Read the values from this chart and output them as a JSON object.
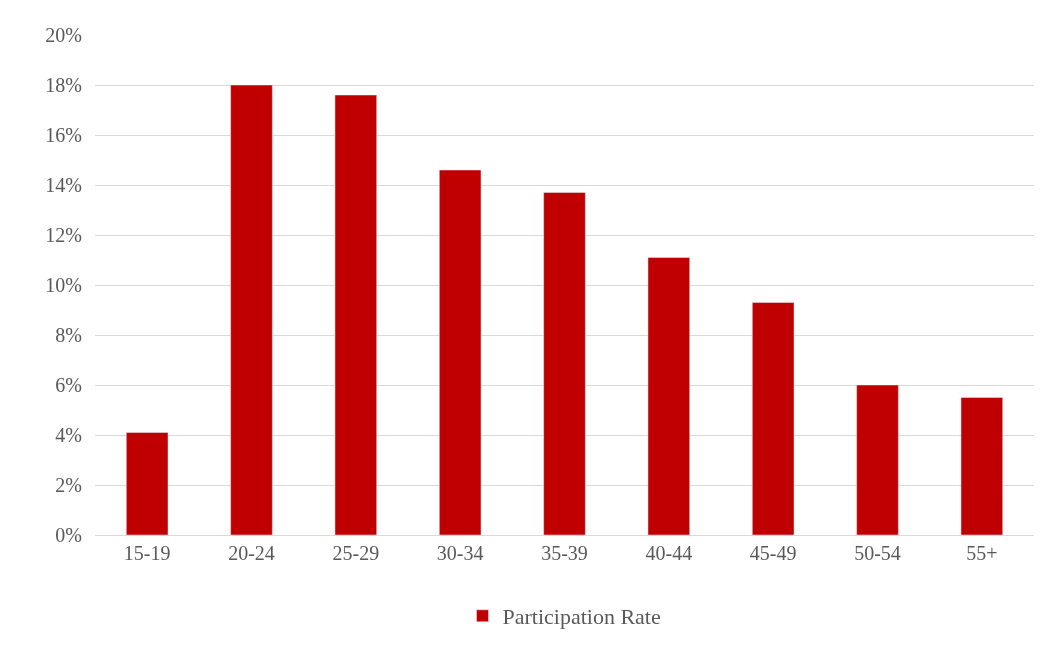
{
  "chart_data": {
    "type": "bar",
    "categories": [
      "15-19",
      "20-24",
      "25-29",
      "30-34",
      "35-39",
      "40-44",
      "45-49",
      "50-54",
      "55+"
    ],
    "series": [
      {
        "name": "Participation Rate",
        "color": "#c00000",
        "values": [
          4.1,
          18.0,
          17.6,
          14.6,
          13.7,
          11.1,
          9.3,
          6.0,
          5.5
        ]
      }
    ],
    "ylim": [
      0,
      20
    ],
    "yticks": [
      {
        "value": 0,
        "label": "0%"
      },
      {
        "value": 2,
        "label": "2%"
      },
      {
        "value": 4,
        "label": "4%"
      },
      {
        "value": 6,
        "label": "6%"
      },
      {
        "value": 8,
        "label": "8%"
      },
      {
        "value": 10,
        "label": "10%"
      },
      {
        "value": 12,
        "label": "12%"
      },
      {
        "value": 14,
        "label": "14%"
      },
      {
        "value": 16,
        "label": "16%"
      },
      {
        "value": 18,
        "label": "18%"
      },
      {
        "value": 20,
        "label": "20%"
      }
    ],
    "grid": "y",
    "legend": "bottom"
  }
}
